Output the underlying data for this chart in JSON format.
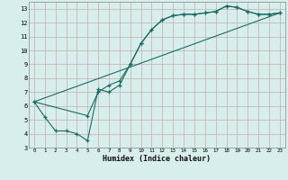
{
  "xlabel": "Humidex (Indice chaleur)",
  "xlim": [
    -0.5,
    23.5
  ],
  "ylim": [
    3,
    13.5
  ],
  "xticks": [
    0,
    1,
    2,
    3,
    4,
    5,
    6,
    7,
    8,
    9,
    10,
    11,
    12,
    13,
    14,
    15,
    16,
    17,
    18,
    19,
    20,
    21,
    22,
    23
  ],
  "yticks": [
    3,
    4,
    5,
    6,
    7,
    8,
    9,
    10,
    11,
    12,
    13
  ],
  "bg_color": "#d8eeed",
  "grid_color": "#c4b8b8",
  "line_color": "#1a6b60",
  "line1_x": [
    0,
    1,
    2,
    3,
    4,
    5,
    6,
    7,
    8,
    9,
    10,
    11,
    12,
    13,
    14,
    15,
    16,
    17,
    18,
    19,
    20,
    21,
    22,
    23
  ],
  "line1_y": [
    6.3,
    5.2,
    4.2,
    4.2,
    4.0,
    3.5,
    7.2,
    7.0,
    7.5,
    9.0,
    10.5,
    11.5,
    12.2,
    12.5,
    12.6,
    12.6,
    12.7,
    12.8,
    13.2,
    13.1,
    12.8,
    12.6,
    12.6,
    12.7
  ],
  "line2_x": [
    0,
    5,
    6,
    7,
    8,
    9,
    10,
    11,
    12,
    13,
    14,
    15,
    16,
    17,
    18,
    19,
    20,
    21,
    22,
    23
  ],
  "line2_y": [
    6.3,
    5.3,
    7.0,
    7.5,
    7.8,
    9.0,
    10.5,
    11.5,
    12.2,
    12.5,
    12.6,
    12.6,
    12.7,
    12.8,
    13.2,
    13.1,
    12.8,
    12.6,
    12.6,
    12.7
  ],
  "line3_x": [
    0,
    23
  ],
  "line3_y": [
    6.3,
    12.7
  ]
}
